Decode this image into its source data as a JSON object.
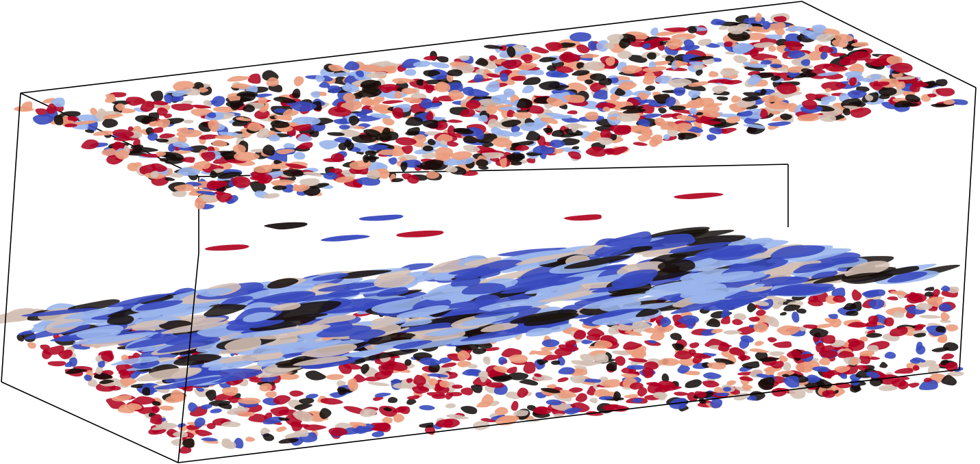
{
  "scene": {
    "background": "#ffffff",
    "outline_color": "#000000",
    "colormap": {
      "name": "cool-to-warm",
      "low": "#3a4cc0",
      "mid_low": "#9db8f0",
      "mid": "#d8c4b8",
      "mid_high": "#f0a080",
      "high": "#b40426",
      "shadow": "#1a1210"
    },
    "layers": [
      {
        "id": "upper-wall-structures",
        "dominant": "mixed-warm"
      },
      {
        "id": "lower-wall-structures",
        "dominant": "cool-streaks"
      }
    ]
  }
}
